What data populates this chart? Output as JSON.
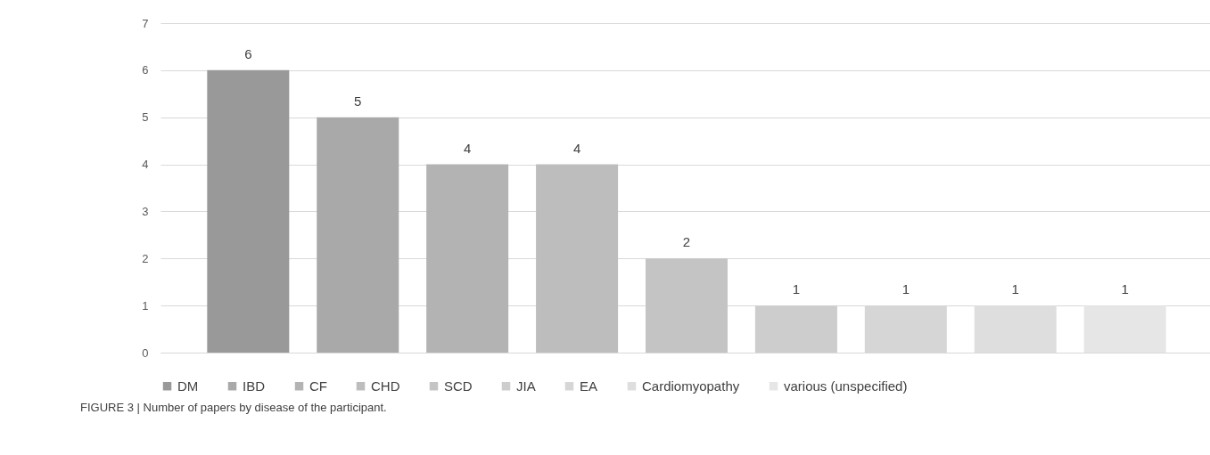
{
  "chart_data": {
    "type": "bar",
    "categories": [
      null,
      null,
      null,
      null,
      null,
      null,
      null,
      null,
      null
    ],
    "series": [
      {
        "name": "DM",
        "color": "#999999",
        "values": [
          6,
          null,
          null,
          null,
          null,
          null,
          null,
          null,
          null
        ]
      },
      {
        "name": "IBD",
        "color": "#a9a9a9",
        "values": [
          null,
          5,
          null,
          null,
          null,
          null,
          null,
          null,
          null
        ]
      },
      {
        "name": "CF",
        "color": "#b3b3b3",
        "values": [
          null,
          null,
          4,
          null,
          null,
          null,
          null,
          null,
          null
        ]
      },
      {
        "name": "CHD",
        "color": "#bdbdbd",
        "values": [
          null,
          null,
          null,
          4,
          null,
          null,
          null,
          null,
          null
        ]
      },
      {
        "name": "SCD",
        "color": "#c4c4c4",
        "values": [
          null,
          null,
          null,
          null,
          2,
          null,
          null,
          null,
          null
        ]
      },
      {
        "name": "JIA",
        "color": "#cdcdcd",
        "values": [
          null,
          null,
          null,
          null,
          null,
          1,
          null,
          null,
          null
        ]
      },
      {
        "name": "EA",
        "color": "#d6d6d6",
        "values": [
          null,
          null,
          null,
          null,
          null,
          null,
          1,
          null,
          null
        ]
      },
      {
        "name": "Cardiomyopathy",
        "color": "#dedede",
        "values": [
          null,
          null,
          null,
          null,
          null,
          null,
          null,
          1,
          null
        ]
      },
      {
        "name": "various (unspecified)",
        "color": "#e6e6e6",
        "values": [
          null,
          null,
          null,
          null,
          null,
          null,
          null,
          null,
          1
        ]
      }
    ],
    "ylim": [
      0,
      7
    ],
    "yticks": [
      0,
      1,
      2,
      3,
      4,
      5,
      6,
      7
    ],
    "grid": "y",
    "legend": "bottom",
    "data_labels": true,
    "tick_labels": "y",
    "annotations": [
      "FIGURE 3 | Number of papers by disease of the participant."
    ]
  }
}
